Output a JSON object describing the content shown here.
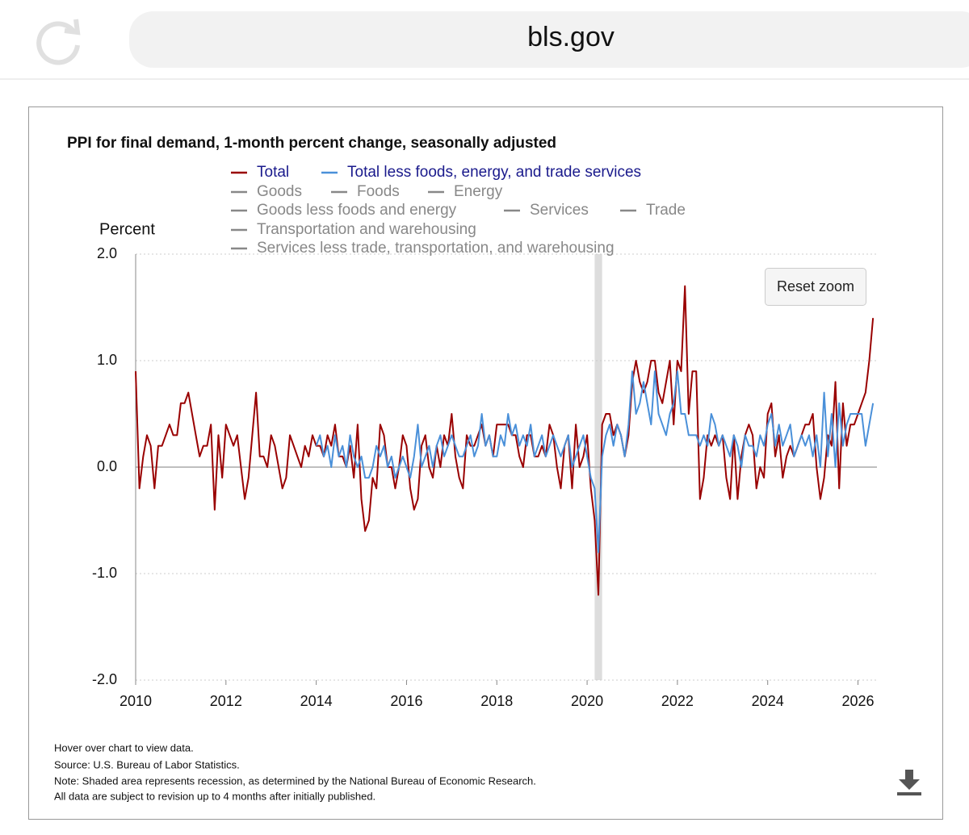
{
  "browser": {
    "url": "bls.gov"
  },
  "reset_zoom": "Reset zoom",
  "notes": [
    "Hover over chart to view data.",
    "Source: U.S. Bureau of Labor Statistics.",
    "Note: Shaded area represents recession, as determined by the National Bureau of Economic Research.",
    "All data are subject to revision up to 4 months after initially published."
  ],
  "chart_data": {
    "type": "line",
    "title": "PPI for final demand, 1-month percent change, seasonally adjusted",
    "y_label": "Percent",
    "xlim": [
      2010,
      2026.42
    ],
    "xticks": [
      2010,
      2012,
      2014,
      2016,
      2018,
      2020,
      2022,
      2024,
      2026
    ],
    "ylim": [
      -2,
      2
    ],
    "yticks": [
      {
        "value": -2,
        "label": "-2.0"
      },
      {
        "value": -1,
        "label": "-1.0"
      },
      {
        "value": 0,
        "label": "0.0"
      },
      {
        "value": 1,
        "label": "1.0"
      },
      {
        "value": 2,
        "label": "2.0"
      }
    ],
    "grid": true,
    "recession": [
      2020.167,
      2020.333
    ],
    "recession_color": "#dddddd",
    "x": [
      2010,
      2010.083,
      2010.167,
      2010.25,
      2010.333,
      2010.417,
      2010.5,
      2010.583,
      2010.667,
      2010.75,
      2010.833,
      2010.917,
      2011,
      2011.083,
      2011.167,
      2011.25,
      2011.333,
      2011.417,
      2011.5,
      2011.583,
      2011.667,
      2011.75,
      2011.833,
      2011.917,
      2012,
      2012.083,
      2012.167,
      2012.25,
      2012.333,
      2012.417,
      2012.5,
      2012.583,
      2012.667,
      2012.75,
      2012.833,
      2012.917,
      2013,
      2013.083,
      2013.167,
      2013.25,
      2013.333,
      2013.417,
      2013.5,
      2013.583,
      2013.667,
      2013.75,
      2013.833,
      2013.917,
      2014,
      2014.083,
      2014.167,
      2014.25,
      2014.333,
      2014.417,
      2014.5,
      2014.583,
      2014.667,
      2014.75,
      2014.833,
      2014.917,
      2015,
      2015.083,
      2015.167,
      2015.25,
      2015.333,
      2015.417,
      2015.5,
      2015.583,
      2015.667,
      2015.75,
      2015.833,
      2015.917,
      2016,
      2016.083,
      2016.167,
      2016.25,
      2016.333,
      2016.417,
      2016.5,
      2016.583,
      2016.667,
      2016.75,
      2016.833,
      2016.917,
      2017,
      2017.083,
      2017.167,
      2017.25,
      2017.333,
      2017.417,
      2017.5,
      2017.583,
      2017.667,
      2017.75,
      2017.833,
      2017.917,
      2018,
      2018.083,
      2018.167,
      2018.25,
      2018.333,
      2018.417,
      2018.5,
      2018.583,
      2018.667,
      2018.75,
      2018.833,
      2018.917,
      2019,
      2019.083,
      2019.167,
      2019.25,
      2019.333,
      2019.417,
      2019.5,
      2019.583,
      2019.667,
      2019.75,
      2019.833,
      2019.917,
      2020,
      2020.083,
      2020.167,
      2020.25,
      2020.333,
      2020.417,
      2020.5,
      2020.583,
      2020.667,
      2020.75,
      2020.833,
      2020.917,
      2021,
      2021.083,
      2021.167,
      2021.25,
      2021.333,
      2021.417,
      2021.5,
      2021.583,
      2021.667,
      2021.75,
      2021.833,
      2021.917,
      2022,
      2022.083,
      2022.167,
      2022.25,
      2022.333,
      2022.417,
      2022.5,
      2022.583,
      2022.667,
      2022.75,
      2022.833,
      2022.917,
      2023,
      2023.083,
      2023.167,
      2023.25,
      2023.333,
      2023.417,
      2023.5,
      2023.583,
      2023.667,
      2023.75,
      2023.833,
      2023.917,
      2024,
      2024.083,
      2024.167,
      2024.25,
      2024.333,
      2024.417,
      2024.5,
      2024.583,
      2024.667,
      2024.75,
      2024.833,
      2024.917,
      2025,
      2025.083,
      2025.167,
      2025.25,
      2025.333,
      2025.417,
      2025.5,
      2025.583,
      2025.667,
      2025.75,
      2025.833,
      2025.917,
      2026,
      2026.083,
      2026.167,
      2026.25,
      2026.333
    ],
    "series": [
      {
        "name": "Total",
        "color": "#990000",
        "values": [
          0.9,
          -0.2,
          0.1,
          0.3,
          0.2,
          -0.2,
          0.2,
          0.2,
          0.3,
          0.4,
          0.3,
          0.3,
          0.6,
          0.6,
          0.7,
          0.5,
          0.3,
          0.1,
          0.2,
          0.2,
          0.4,
          -0.4,
          0.3,
          -0.1,
          0.4,
          0.3,
          0.2,
          0.3,
          0.0,
          -0.3,
          -0.1,
          0.3,
          0.7,
          0.1,
          0.1,
          0.0,
          0.3,
          0.2,
          0.0,
          -0.2,
          -0.1,
          0.3,
          0.2,
          0.1,
          0.0,
          0.2,
          0.1,
          0.3,
          0.2,
          0.2,
          0.1,
          0.3,
          0.2,
          0.4,
          0.1,
          0.1,
          0.0,
          0.2,
          -0.1,
          0.4,
          -0.3,
          -0.6,
          -0.5,
          -0.1,
          -0.2,
          0.4,
          0.3,
          0.0,
          0.0,
          -0.2,
          0.0,
          0.3,
          0.2,
          -0.2,
          -0.4,
          -0.3,
          0.2,
          0.3,
          0.0,
          -0.1,
          0.2,
          0.0,
          0.3,
          0.2,
          0.5,
          0.1,
          -0.1,
          -0.2,
          0.3,
          0.2,
          0.2,
          0.3,
          0.4,
          0.2,
          0.3,
          0.1,
          0.4,
          0.4,
          0.4,
          0.4,
          0.3,
          0.3,
          0.1,
          0.0,
          0.3,
          0.3,
          0.1,
          0.1,
          0.2,
          0.1,
          0.4,
          0.3,
          0.0,
          -0.2,
          0.2,
          0.3,
          -0.2,
          0.4,
          0.0,
          0.1,
          0.3,
          -0.2,
          -0.5,
          -1.2,
          0.4,
          0.5,
          0.5,
          0.3,
          0.4,
          0.3,
          0.1,
          0.3,
          0.8,
          1.0,
          0.8,
          0.7,
          0.8,
          1.0,
          1.0,
          0.7,
          0.6,
          0.8,
          1.0,
          0.4,
          1.0,
          0.9,
          1.7,
          0.5,
          0.9,
          0.9,
          -0.3,
          -0.1,
          0.3,
          0.2,
          0.3,
          0.2,
          0.3,
          -0.1,
          -0.3,
          0.3,
          -0.3,
          0.1,
          0.3,
          0.4,
          0.3,
          -0.2,
          0.0,
          -0.1,
          0.5,
          0.6,
          0.1,
          0.3,
          -0.1,
          0.1,
          0.2,
          0.1,
          0.2,
          0.3,
          0.4,
          0.4,
          0.5,
          0.0,
          -0.3,
          -0.1,
          0.3,
          0.2,
          0.8,
          -0.2,
          0.6,
          0.2,
          0.4,
          0.4,
          0.5,
          0.6,
          0.7,
          1.0,
          1.4
        ]
      },
      {
        "name": "Total less foods, energy, and trade services",
        "color": "#4a90d9",
        "values": [
          null,
          null,
          null,
          null,
          null,
          null,
          null,
          null,
          null,
          null,
          null,
          null,
          null,
          null,
          null,
          null,
          null,
          null,
          null,
          null,
          null,
          null,
          null,
          null,
          null,
          null,
          null,
          null,
          null,
          null,
          null,
          null,
          null,
          null,
          null,
          null,
          null,
          null,
          null,
          null,
          null,
          null,
          null,
          null,
          null,
          null,
          null,
          null,
          0.2,
          0.3,
          0.1,
          0.2,
          0.0,
          0.3,
          0.1,
          0.2,
          0.0,
          0.3,
          0.1,
          0.0,
          0.1,
          -0.1,
          -0.1,
          0.0,
          0.2,
          0.1,
          0.2,
          0.0,
          0.1,
          -0.1,
          0.0,
          0.1,
          0.0,
          -0.1,
          0.1,
          0.4,
          0.0,
          0.1,
          0.2,
          0.0,
          0.2,
          0.3,
          0.1,
          0.2,
          0.3,
          0.2,
          0.1,
          0.1,
          0.2,
          0.3,
          0.1,
          0.2,
          0.5,
          0.2,
          0.3,
          0.1,
          0.1,
          0.3,
          0.2,
          0.5,
          0.3,
          0.4,
          0.2,
          0.3,
          0.2,
          0.4,
          0.1,
          0.2,
          0.3,
          0.1,
          0.2,
          0.3,
          0.2,
          0.1,
          0.2,
          0.3,
          0.0,
          0.1,
          0.2,
          0.3,
          0.1,
          -0.1,
          -0.2,
          -0.8,
          0.1,
          0.3,
          0.4,
          0.2,
          0.4,
          0.3,
          0.1,
          0.4,
          0.9,
          0.5,
          0.6,
          0.8,
          0.6,
          0.4,
          0.9,
          0.5,
          0.4,
          0.3,
          0.5,
          0.6,
          0.9,
          0.5,
          0.5,
          0.3,
          0.3,
          0.3,
          0.2,
          0.3,
          0.2,
          0.5,
          0.4,
          0.2,
          0.3,
          0.2,
          0.1,
          0.3,
          0.2,
          0.0,
          0.3,
          0.2,
          0.2,
          0.1,
          0.3,
          0.2,
          0.4,
          0.5,
          0.2,
          0.4,
          0.2,
          0.3,
          0.4,
          0.1,
          0.2,
          0.3,
          0.2,
          0.3,
          0.1,
          0.3,
          0.0,
          0.7,
          0.1,
          0.5,
          0.0,
          0.6,
          0.2,
          0.4,
          0.5,
          0.5,
          0.5,
          0.5,
          0.2,
          0.4,
          0.6
        ]
      }
    ],
    "legend_hidden": [
      "Goods",
      "Foods",
      "Energy",
      "Goods less foods and energy",
      "Services",
      "Trade",
      "Transportation and warehousing",
      "Services less trade, transportation, and warehousing"
    ],
    "legend_hidden_color": "#888888"
  }
}
